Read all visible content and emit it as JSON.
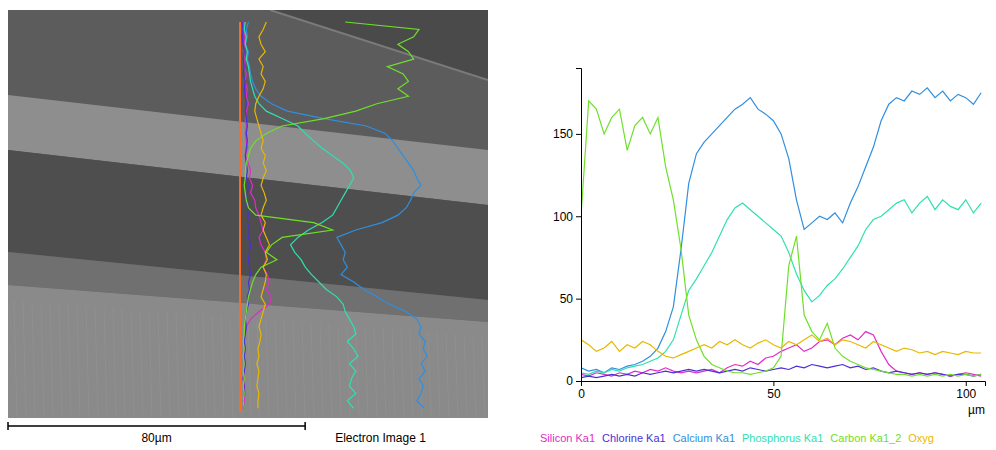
{
  "chart_data": [
    {
      "type": "image",
      "scale_bar": {
        "value": 80,
        "label": "80µm"
      },
      "caption": "Electron Image 1"
    },
    {
      "type": "line",
      "x_label": "µm",
      "x": [
        0,
        2,
        4,
        6,
        8,
        10,
        12,
        14,
        16,
        18,
        20,
        22,
        24,
        26,
        28,
        30,
        32,
        34,
        36,
        38,
        40,
        42,
        44,
        46,
        48,
        50,
        52,
        54,
        56,
        58,
        60,
        62,
        64,
        66,
        68,
        70,
        72,
        74,
        76,
        78,
        80,
        82,
        84,
        86,
        88,
        90,
        92,
        94,
        96,
        98,
        100,
        102,
        104
      ],
      "xlim": [
        0,
        105
      ],
      "xticks": [
        0,
        50,
        100
      ],
      "ylim": [
        0,
        190
      ],
      "yticks": [
        0,
        50,
        100,
        150
      ],
      "legend": "bottom",
      "series": [
        {
          "name": "Silicon Ka1",
          "color": "#e02cc8",
          "values": [
            4,
            3,
            5,
            4,
            3,
            5,
            4,
            6,
            5,
            7,
            6,
            8,
            6,
            5,
            6,
            5,
            6,
            7,
            5,
            8,
            10,
            9,
            12,
            10,
            14,
            15,
            18,
            20,
            22,
            18,
            20,
            24,
            25,
            22,
            26,
            28,
            25,
            30,
            28,
            18,
            10,
            6,
            5,
            4,
            5,
            4,
            5,
            4,
            3,
            4,
            5,
            4,
            3
          ]
        },
        {
          "name": "Chlorine Ka1",
          "color": "#4b2fd6",
          "values": [
            2,
            3,
            2,
            3,
            4,
            3,
            4,
            3,
            5,
            4,
            5,
            6,
            5,
            6,
            7,
            6,
            7,
            6,
            5,
            6,
            7,
            6,
            8,
            7,
            6,
            7,
            8,
            7,
            9,
            8,
            10,
            9,
            8,
            9,
            10,
            8,
            9,
            7,
            8,
            6,
            5,
            6,
            5,
            4,
            5,
            4,
            5,
            4,
            3,
            4,
            4,
            3,
            4
          ]
        },
        {
          "name": "Calcium Ka1",
          "color": "#2f8fe0",
          "values": [
            8,
            6,
            7,
            5,
            8,
            7,
            9,
            10,
            12,
            15,
            20,
            30,
            45,
            80,
            120,
            138,
            145,
            150,
            155,
            160,
            165,
            168,
            172,
            165,
            162,
            158,
            150,
            135,
            110,
            92,
            96,
            100,
            98,
            102,
            96,
            108,
            118,
            130,
            142,
            158,
            168,
            172,
            170,
            176,
            174,
            178,
            172,
            176,
            170,
            174,
            172,
            168,
            175
          ]
        },
        {
          "name": "Phosphorus Ka1",
          "color": "#2fe0b0",
          "values": [
            5,
            4,
            6,
            5,
            7,
            6,
            8,
            9,
            10,
            12,
            14,
            18,
            25,
            40,
            55,
            62,
            70,
            78,
            88,
            98,
            105,
            108,
            104,
            100,
            96,
            92,
            88,
            78,
            65,
            55,
            48,
            52,
            58,
            62,
            68,
            75,
            82,
            92,
            98,
            100,
            104,
            108,
            110,
            102,
            108,
            112,
            104,
            110,
            106,
            104,
            110,
            102,
            108
          ]
        },
        {
          "name": "Carbon Ka1_2",
          "color": "#6ee02a",
          "values": [
            100,
            170,
            165,
            150,
            160,
            165,
            140,
            155,
            160,
            150,
            160,
            130,
            110,
            80,
            40,
            25,
            15,
            10,
            8,
            6,
            5,
            5,
            4,
            5,
            6,
            8,
            15,
            70,
            88,
            40,
            30,
            25,
            35,
            20,
            15,
            12,
            10,
            8,
            7,
            6,
            5,
            4,
            4,
            3,
            4,
            3,
            4,
            3,
            4,
            3,
            4,
            3,
            4
          ]
        },
        {
          "name": "Oxyg",
          "color": "#e8b800",
          "values": [
            25,
            22,
            18,
            20,
            24,
            18,
            22,
            20,
            24,
            22,
            18,
            15,
            14,
            16,
            18,
            20,
            22,
            20,
            24,
            22,
            25,
            22,
            20,
            23,
            25,
            22,
            20,
            24,
            22,
            25,
            28,
            24,
            26,
            22,
            25,
            24,
            22,
            20,
            24,
            22,
            20,
            18,
            20,
            19,
            17,
            18,
            16,
            18,
            17,
            16,
            18,
            17,
            17
          ]
        }
      ]
    }
  ]
}
